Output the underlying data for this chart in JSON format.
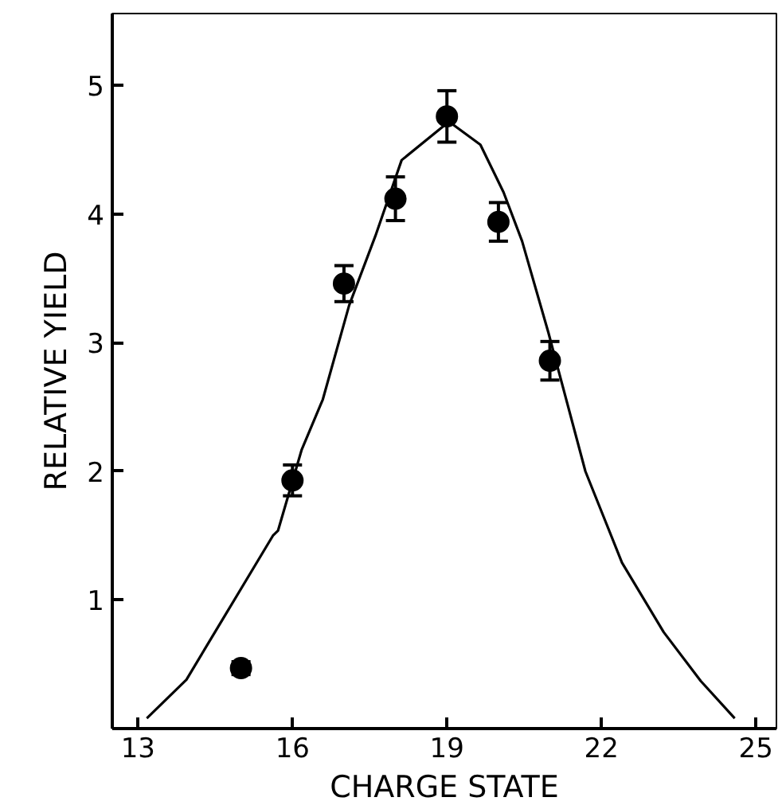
{
  "chart_data": {
    "type": "scatter",
    "xlabel": "CHARGE STATE",
    "ylabel": "RELATIVE YIELD",
    "xlim": [
      12.5,
      25.4
    ],
    "ylim": [
      0,
      5.56
    ],
    "xticks": [
      13,
      16,
      19,
      22,
      25
    ],
    "yticks": [
      1,
      2,
      3,
      4,
      5
    ],
    "grid": false,
    "marker": "circle",
    "series": [
      {
        "color": "#000000",
        "x": [
          15,
          16,
          17,
          18,
          19,
          20,
          21
        ],
        "values": [
          0.47,
          1.93,
          3.46,
          4.12,
          4.76,
          3.94,
          2.86
        ],
        "errors": [
          0.05,
          0.12,
          0.14,
          0.17,
          0.2,
          0.15,
          0.15
        ]
      },
      {
        "type": "line",
        "color": "#000000",
        "marker": "none",
        "line_style": "solid",
        "x": [
          13.17,
          13.94,
          14.75,
          15.62,
          15.72,
          16.18,
          16.59,
          17.1,
          17.61,
          18.12,
          19.04,
          19.65,
          20.1,
          20.46,
          20.97,
          21.69,
          22.4,
          23.21,
          23.93,
          24.59
        ],
        "values": [
          0.08,
          0.38,
          0.92,
          1.5,
          1.54,
          2.17,
          2.56,
          3.29,
          3.83,
          4.42,
          4.72,
          4.54,
          4.17,
          3.79,
          3.08,
          2.0,
          1.29,
          0.75,
          0.37,
          0.08
        ]
      }
    ]
  }
}
